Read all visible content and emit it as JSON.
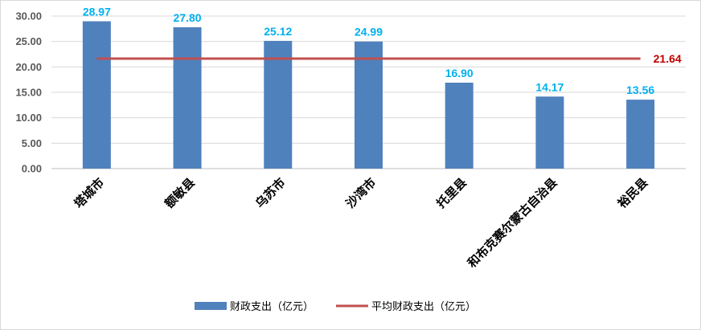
{
  "chart_data": {
    "type": "bar",
    "categories": [
      "塔城市",
      "额敏县",
      "乌苏市",
      "沙湾市",
      "托里县",
      "和布克赛尔蒙古自治县",
      "裕民县"
    ],
    "series": [
      {
        "name": "财政支出（亿元）",
        "type": "bar",
        "values": [
          28.97,
          27.8,
          25.12,
          24.99,
          16.9,
          14.17,
          13.56
        ],
        "labels": [
          "28.97",
          "27.80",
          "25.12",
          "24.99",
          "16.90",
          "14.17",
          "13.56"
        ],
        "color": "#4f81bd",
        "label_color": "#00b0f0"
      },
      {
        "name": "平均财政支出（亿元）",
        "type": "line",
        "values": [
          21.64,
          21.64,
          21.64,
          21.64,
          21.64,
          21.64,
          21.64
        ],
        "label": "21.64",
        "color": "#c0504d",
        "label_color": "#c00000"
      }
    ],
    "y_ticks": [
      "0.00",
      "5.00",
      "10.00",
      "15.00",
      "20.00",
      "25.00",
      "30.00"
    ],
    "ylim": [
      0,
      30
    ],
    "grid": true,
    "legend": "bottom"
  }
}
